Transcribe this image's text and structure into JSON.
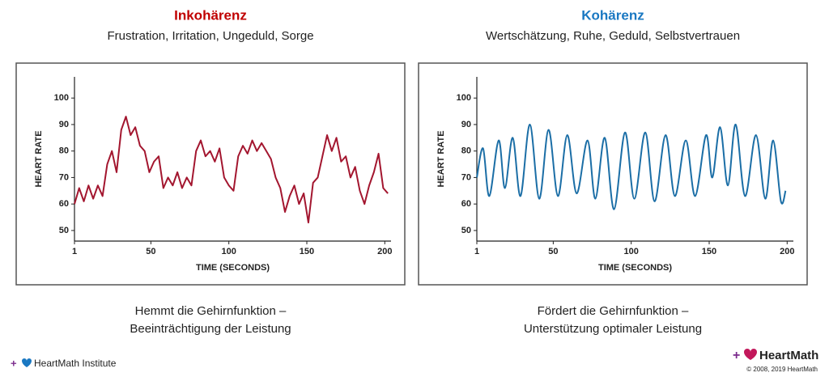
{
  "chart_data": [
    {
      "type": "line",
      "title": "Inkohärenz",
      "title_color": "#c00000",
      "subtitle": "Frustration, Irritation, Ungeduld, Sorge",
      "caption": [
        "Hemmt die Gehirnfunktion –",
        "Beeinträchtigung der Leistung"
      ],
      "xlabel": "TIME (SECONDS)",
      "ylabel": "HEART RATE",
      "x": [
        1,
        4,
        7,
        10,
        13,
        16,
        19,
        22,
        25,
        28,
        31,
        34,
        37,
        40,
        43,
        46,
        49,
        52,
        55,
        58,
        61,
        64,
        67,
        70,
        73,
        76,
        79,
        82,
        85,
        88,
        91,
        94,
        97,
        100,
        103,
        106,
        109,
        112,
        115,
        118,
        121,
        124,
        127,
        130,
        133,
        136,
        139,
        142,
        145,
        148,
        151,
        154,
        157,
        160,
        163,
        166,
        169,
        172,
        175,
        178,
        181,
        184,
        187,
        190,
        193,
        196,
        199,
        202
      ],
      "series": [
        {
          "color": "#a3162f",
          "values": [
            60,
            66,
            61,
            67,
            62,
            67,
            63,
            75,
            80,
            72,
            88,
            93,
            86,
            89,
            82,
            80,
            72,
            76,
            78,
            66,
            70,
            67,
            72,
            66,
            70,
            67,
            80,
            84,
            78,
            80,
            76,
            81,
            70,
            67,
            65,
            78,
            82,
            79,
            84,
            80,
            83,
            80,
            77,
            70,
            66,
            57,
            63,
            67,
            60,
            64,
            53,
            68,
            70,
            78,
            86,
            80,
            85,
            76,
            78,
            70,
            74,
            65,
            60,
            67,
            72,
            79,
            66,
            64
          ]
        }
      ],
      "smooth": false,
      "xlim": [
        1,
        204
      ],
      "ylim": [
        46,
        108
      ],
      "xticks": [
        1,
        50,
        100,
        150,
        200
      ],
      "yticks": [
        50,
        60,
        70,
        80,
        90,
        100
      ]
    },
    {
      "type": "line",
      "title": "Kohärenz",
      "title_color": "#1a78c2",
      "subtitle": "Wertschätzung, Ruhe, Geduld, Selbstvertrauen",
      "caption": [
        "Fördert die Gehirnfunktion –",
        "Unterstützung optimaler Leistung"
      ],
      "xlabel": "TIME (SECONDS)",
      "ylabel": "HEART RATE",
      "x": [
        1,
        5,
        9,
        15,
        19,
        24,
        29,
        35,
        41,
        47,
        53,
        59,
        65,
        72,
        77,
        83,
        89,
        96,
        102,
        109,
        115,
        122,
        128,
        135,
        141,
        148,
        152,
        157,
        162,
        167,
        173,
        180,
        186,
        191,
        196,
        199
      ],
      "series": [
        {
          "color": "#1b6ea6",
          "values": [
            70,
            81,
            63,
            84,
            66,
            85,
            63,
            90,
            62,
            88,
            63,
            86,
            64,
            84,
            62,
            85,
            58,
            87,
            62,
            87,
            61,
            86,
            63,
            84,
            63,
            86,
            70,
            89,
            67,
            90,
            63,
            86,
            62,
            84,
            61,
            65
          ]
        }
      ],
      "smooth": true,
      "xlim": [
        1,
        204
      ],
      "ylim": [
        46,
        108
      ],
      "xticks": [
        1,
        50,
        100,
        150,
        200
      ],
      "yticks": [
        50,
        60,
        70,
        80,
        90,
        100
      ]
    }
  ],
  "footer": {
    "left": "HeartMath Institute",
    "right": "HeartMath",
    "copyright": "© 2008, 2019 HeartMath"
  }
}
